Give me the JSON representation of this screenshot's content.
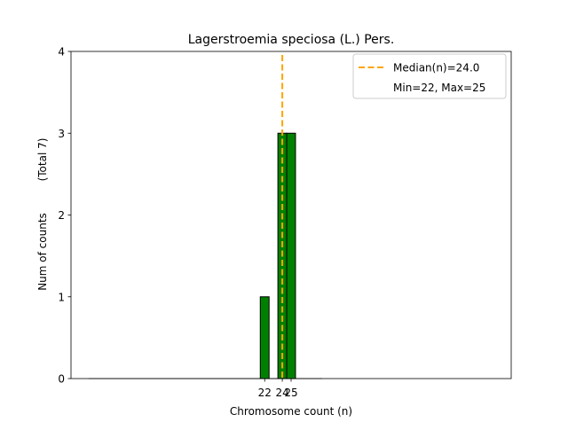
{
  "chart_data": {
    "type": "bar",
    "title": "Lagerstroemia speciosa (L.) Pers.",
    "xlabel": "Chromosome count (n)",
    "ylabel": "Num of counts",
    "ylabel_secondary": "(Total 7)",
    "x": [
      22,
      24,
      25
    ],
    "values": [
      1,
      3,
      3
    ],
    "xlim": [
      0,
      50
    ],
    "ylim": [
      0,
      4
    ],
    "yticks": [
      0,
      1,
      2,
      3,
      4
    ],
    "xticks": [
      22,
      24,
      25
    ],
    "bar_color": "#008000",
    "bar_edge_color": "#000000",
    "median": 24.0,
    "median_color": "#ffa500",
    "legend": {
      "location": "top-right",
      "entries": [
        "Median(n)=24.0",
        "Min=22, Max=25"
      ]
    },
    "grid": false
  }
}
